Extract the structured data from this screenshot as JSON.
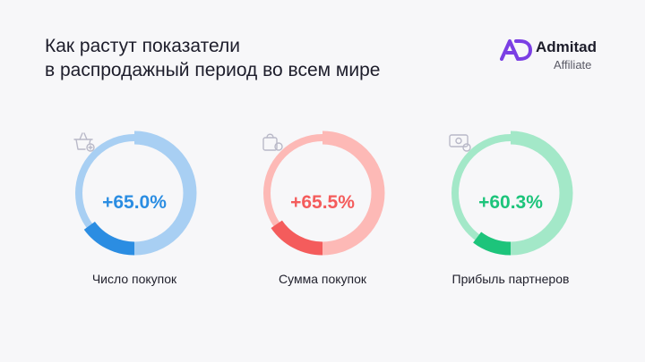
{
  "title": {
    "line1": "Как растут показатели",
    "line2": "в распродажный период во всем мире"
  },
  "brand": {
    "name": "Admitad",
    "sub": "Affiliate",
    "color": "#7b3fe4"
  },
  "chart_data": [
    {
      "type": "donut",
      "label": "Число покупок",
      "value_text": "+65.0%",
      "value": 65.0,
      "icon": "shopping-basket-icon",
      "colors": {
        "dark": "#2b8de2",
        "light": "#a8cff3",
        "text": "#2b8de2"
      }
    },
    {
      "type": "donut",
      "label": "Сумма покупок",
      "value_text": "+65.5%",
      "value": 65.5,
      "icon": "shopping-bag-icon",
      "colors": {
        "dark": "#f45c5c",
        "light": "#fdb9b6",
        "text": "#f45c5c"
      }
    },
    {
      "type": "donut",
      "label": "Прибыль партнеров",
      "value_text": "+60.3%",
      "value": 60.3,
      "icon": "money-icon",
      "colors": {
        "dark": "#1dc47b",
        "light": "#a3e8c8",
        "text": "#1dc47b"
      }
    }
  ]
}
